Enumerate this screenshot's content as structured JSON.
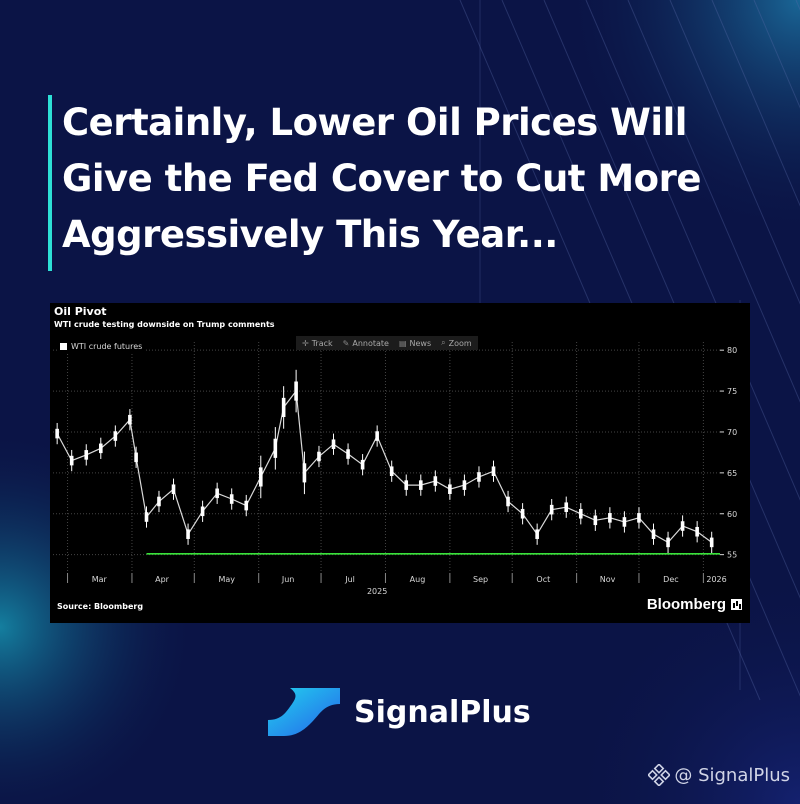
{
  "headline": {
    "lines": [
      "Certainly, Lower Oil Prices Will",
      "Give the Fed Cover to Cut More",
      "Aggressively This Year..."
    ]
  },
  "chart_panel": {
    "toolbar": [
      {
        "icon": "track-icon",
        "glyph": "✛",
        "label": "Track"
      },
      {
        "icon": "annotate-icon",
        "glyph": "✎",
        "label": "Annotate"
      },
      {
        "icon": "news-icon",
        "glyph": "▤",
        "label": "News"
      },
      {
        "icon": "zoom-icon",
        "glyph": "⌕",
        "label": "Zoom"
      }
    ],
    "source": "Source: Bloomberg",
    "logo_text": "Bloomberg"
  },
  "chart_data": {
    "type": "line",
    "title": "Oil Pivot",
    "subtitle": "WTI crude testing downside on Trump comments",
    "series": [
      {
        "name": "WTI crude futures",
        "color": "#ffffff",
        "x": [
          "2025-02-24",
          "2025-03-03",
          "2025-03-10",
          "2025-03-17",
          "2025-03-24",
          "2025-03-31",
          "2025-04-03",
          "2025-04-08",
          "2025-04-14",
          "2025-04-21",
          "2025-04-28",
          "2025-05-05",
          "2025-05-12",
          "2025-05-19",
          "2025-05-26",
          "2025-06-02",
          "2025-06-09",
          "2025-06-13",
          "2025-06-19",
          "2025-06-23",
          "2025-06-30",
          "2025-07-07",
          "2025-07-14",
          "2025-07-21",
          "2025-07-28",
          "2025-08-04",
          "2025-08-11",
          "2025-08-18",
          "2025-08-25",
          "2025-09-01",
          "2025-09-08",
          "2025-09-15",
          "2025-09-22",
          "2025-09-29",
          "2025-10-06",
          "2025-10-13",
          "2025-10-20",
          "2025-10-27",
          "2025-11-03",
          "2025-11-10",
          "2025-11-17",
          "2025-11-24",
          "2025-12-01",
          "2025-12-08",
          "2025-12-15",
          "2025-12-22",
          "2025-12-29",
          "2026-01-05"
        ],
        "values": [
          69.8,
          66.5,
          67.2,
          68.0,
          69.5,
          71.5,
          66.9,
          59.6,
          61.5,
          63.0,
          57.5,
          60.3,
          62.5,
          61.8,
          61.0,
          64.5,
          68.0,
          73.0,
          75.0,
          65.0,
          67.0,
          68.5,
          67.3,
          66.0,
          69.5,
          65.2,
          63.5,
          63.5,
          64.0,
          63.0,
          63.5,
          64.5,
          65.2,
          61.5,
          60.0,
          57.5,
          60.5,
          60.8,
          60.0,
          59.2,
          59.5,
          59.0,
          59.5,
          57.5,
          56.5,
          58.5,
          57.8,
          56.5
        ]
      }
    ],
    "support_level": {
      "value": 55.1,
      "color": "#39e23a"
    },
    "x_ticks": [
      "Mar",
      "Apr",
      "May",
      "Jun",
      "Jul",
      "Aug",
      "Sep",
      "Oct",
      "Nov",
      "Dec",
      "2026"
    ],
    "x_year_label": "2025",
    "y_ticks": [
      55,
      60,
      65,
      70,
      75,
      80
    ],
    "ylim": [
      53,
      81
    ],
    "grid": true,
    "legend_position": "top-left",
    "colors": {
      "background": "#000000",
      "grid": "#444444",
      "axis_text": "#d8d8d8"
    }
  },
  "brand": {
    "name": "SignalPlus",
    "logo_icon": "signalplus-logo-icon"
  },
  "handle": {
    "text": "@ SignalPlus",
    "icon": "binance-square-icon"
  },
  "colors": {
    "page_bg": "#0b1446",
    "accent_bar": "#2de0d6"
  }
}
